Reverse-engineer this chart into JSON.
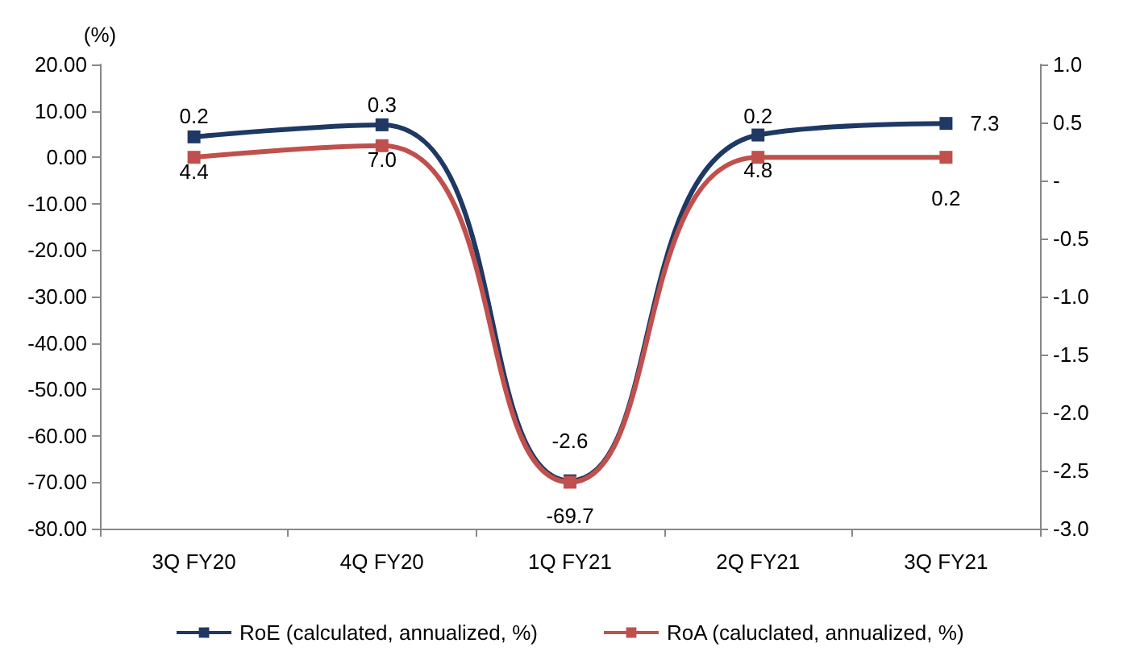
{
  "chart_data": {
    "type": "line",
    "ylabel": "(%)",
    "categories": [
      "3Q FY20",
      "4Q FY20",
      "1Q FY21",
      "2Q FY21",
      "3Q FY21"
    ],
    "series": [
      {
        "name": "RoE (calculated, annualized, %)",
        "color": "#1f3864",
        "values": [
          4.4,
          7.0,
          -69.7,
          4.8,
          7.3
        ],
        "value_labels": [
          "4.4",
          "7.0",
          "-69.7",
          "4.8",
          "7.3"
        ]
      },
      {
        "name": "RoA (caluclated, annualized, %)",
        "color": "#c0504d",
        "axis": "y2",
        "values": [
          0.2,
          0.3,
          -2.6,
          0.2,
          0.2
        ],
        "value_labels": [
          "0.2",
          "0.3",
          "-2.6",
          "0.2",
          "0.2"
        ]
      }
    ],
    "ylim": [
      -80,
      20
    ],
    "yticks": [
      {
        "value": -80,
        "label": "-80.00"
      },
      {
        "value": -70,
        "label": "-70.00"
      },
      {
        "value": -60,
        "label": "-60.00"
      },
      {
        "value": -50,
        "label": "-50.00"
      },
      {
        "value": -40,
        "label": "-40.00"
      },
      {
        "value": -30,
        "label": "-30.00"
      },
      {
        "value": -20,
        "label": "-20.00"
      },
      {
        "value": -10,
        "label": "-10.00"
      },
      {
        "value": 0,
        "label": "0.00"
      },
      {
        "value": 10,
        "label": "10.00"
      },
      {
        "value": 20,
        "label": "20.00"
      }
    ],
    "y2lim": [
      -3,
      1
    ],
    "y2ticks": [
      {
        "value": -3,
        "label": "-3.0"
      },
      {
        "value": -2.5,
        "label": "-2.5"
      },
      {
        "value": -2,
        "label": "-2.0"
      },
      {
        "value": -1.5,
        "label": "-1.5"
      },
      {
        "value": -1,
        "label": "-1.0"
      },
      {
        "value": -0.5,
        "label": "-0.5"
      },
      {
        "value": 0,
        "label": "-"
      },
      {
        "value": 0.5,
        "label": "0.5"
      },
      {
        "value": 1,
        "label": "1.0"
      }
    ],
    "marker": "square",
    "line_style": "solid",
    "grid": false,
    "legend": "bottom"
  }
}
